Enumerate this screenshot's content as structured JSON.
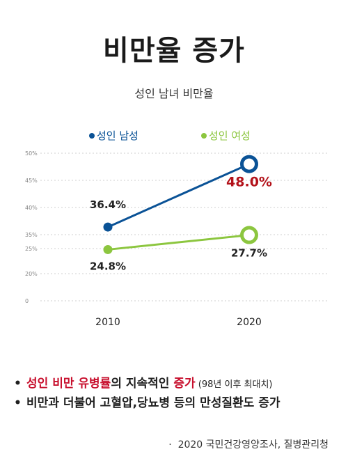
{
  "title": "비만율 증가",
  "colors": {
    "male": "#0a5296",
    "female": "#8cc63f",
    "highlight": "#b3121a",
    "grid": "#cfcfcf"
  },
  "chart_data": {
    "type": "line",
    "title": "성인 남녀 비만율",
    "categories": [
      "2010",
      "2020"
    ],
    "y_ticks": [
      {
        "label": "50%",
        "value": 50
      },
      {
        "label": "45%",
        "value": 45
      },
      {
        "label": "40%",
        "value": 40
      },
      {
        "label": "35%",
        "value": 35
      },
      {
        "label": "25%",
        "value": 25
      },
      {
        "label": "20%",
        "value": 20
      },
      {
        "label": "0",
        "value": 0
      }
    ],
    "axis_note": "broken y-axis between 35% and 25%",
    "grid": true,
    "legend_position": "top",
    "series": [
      {
        "name": "성인 남성",
        "values": [
          36.4,
          48.0
        ],
        "labels": [
          "36.4%",
          "48.0%"
        ]
      },
      {
        "name": "성인 여성",
        "values": [
          24.8,
          27.7
        ],
        "labels": [
          "24.8%",
          "27.7%"
        ]
      }
    ]
  },
  "bullets": [
    {
      "parts": [
        "성인 비만 유병률",
        "의 지속적인 ",
        "증가",
        " (98년 이후 최대치)"
      ]
    },
    {
      "parts": [
        "비만과 더불어 고혈압,당뇨병 등의 만성질환도 증가"
      ]
    }
  ],
  "source": "2020 국민건강영양조사, 질병관리청"
}
